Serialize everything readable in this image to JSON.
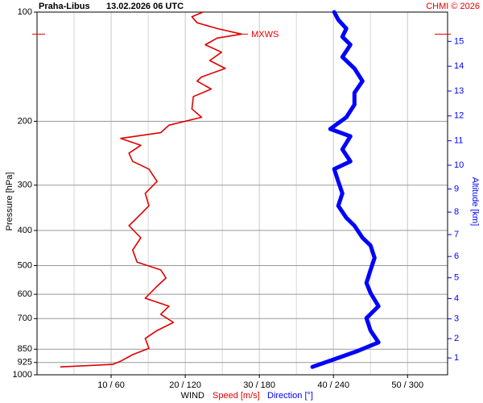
{
  "chart_data": {
    "type": "profile",
    "title": "Praha-Libus",
    "subtitle": "13.02.2026 06 UTC",
    "credit": "CHMI © 2026",
    "ylabel": "Pressure [hPa]",
    "y2label": "Altitude [km]",
    "xlabel": "WIND",
    "ylog": true,
    "ylim": [
      100,
      1000
    ],
    "yticks": [
      100,
      200,
      300,
      400,
      500,
      600,
      700,
      850,
      925,
      1000
    ],
    "xlim": [
      0,
      55.4
    ],
    "x2lim": [
      0,
      332.4
    ],
    "xticks": [
      {
        "value": 10,
        "label": "10 / 60"
      },
      {
        "value": 20,
        "label": "20 / 120"
      },
      {
        "value": 30,
        "label": "30 / 180"
      },
      {
        "value": 40,
        "label": "40 / 240"
      },
      {
        "value": 50,
        "label": "50 / 300"
      }
    ],
    "xminor": [
      5,
      15,
      25,
      35,
      45
    ],
    "y2ticks": [
      1,
      2,
      3,
      4,
      5,
      6,
      7,
      8,
      9,
      10,
      11,
      12,
      13,
      14,
      15
    ],
    "grid": true,
    "annotation": {
      "text": "MXWS",
      "pressure": 115,
      "value": 27.6
    },
    "series": [
      {
        "name": "Speed [m/s]",
        "color": "#e00000",
        "pressure": [
          100,
          103,
          107,
          111,
          115,
          118,
          123,
          129,
          136,
          143,
          151,
          155,
          163,
          171,
          185,
          195,
          205,
          215,
          223,
          233,
          245,
          258,
          271,
          293,
          316,
          342,
          369,
          388,
          419,
          453,
          489,
          514,
          541,
          570,
          615,
          647,
          681,
          717,
          755,
          794,
          845,
          880,
          917,
          936,
          951
        ],
        "values": [
          22.4,
          20.9,
          21.6,
          24.3,
          27.6,
          24.3,
          22.7,
          24.9,
          23.3,
          25.4,
          22.2,
          21.6,
          23.5,
          21.1,
          20.9,
          22.2,
          17.8,
          16.7,
          11.3,
          14.0,
          12.4,
          12.9,
          15.1,
          16.2,
          14.6,
          15.1,
          13.5,
          12.4,
          14.0,
          12.9,
          13.5,
          16.7,
          17.4,
          16.2,
          14.6,
          17.8,
          16.7,
          18.4,
          16.2,
          14.6,
          15.1,
          12.9,
          11.3,
          10.2,
          3.2
        ]
      },
      {
        "name": "Direction [°]",
        "color": "#0000ff",
        "axis": "x2",
        "pressure": [
          100,
          105,
          111,
          117,
          123,
          133,
          143,
          155,
          167,
          180,
          195,
          210,
          220,
          239,
          258,
          271,
          293,
          316,
          342,
          369,
          388,
          419,
          440,
          476,
          514,
          558,
          595,
          647,
          698,
          755,
          814,
          858,
          898,
          951
        ],
        "values": [
          240.6,
          243.9,
          250.4,
          247.2,
          253.7,
          247.2,
          257,
          263.5,
          257,
          257,
          250.4,
          237.4,
          253.7,
          247.2,
          253.7,
          240.6,
          243.9,
          247.2,
          243.9,
          250.4,
          257,
          263.5,
          270,
          273.3,
          270,
          266.7,
          270,
          276.5,
          266.7,
          270,
          276.5,
          260.2,
          243.9,
          223
        ]
      }
    ]
  }
}
